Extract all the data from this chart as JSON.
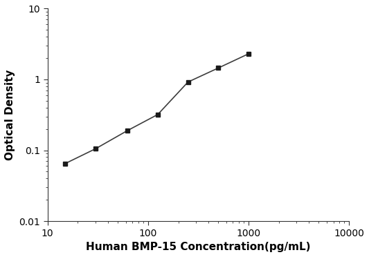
{
  "x": [
    15,
    30,
    62.5,
    125,
    250,
    500,
    1000
  ],
  "y": [
    0.065,
    0.105,
    0.19,
    0.32,
    0.92,
    1.45,
    2.3
  ],
  "line_color": "#3c3c3c",
  "marker": "s",
  "marker_color": "#1a1a1a",
  "marker_size": 5,
  "line_width": 1.2,
  "xlabel": "Human BMP-15 Concentration(pg/mL)",
  "ylabel": "Optical Density",
  "xlim": [
    10,
    10000
  ],
  "ylim": [
    0.01,
    10
  ],
  "xlabel_fontsize": 11,
  "ylabel_fontsize": 11,
  "tick_fontsize": 10,
  "background_color": "#ffffff",
  "x_ticks": [
    10,
    100,
    1000,
    10000
  ],
  "x_tick_labels": [
    "10",
    "100",
    "1000",
    "10000"
  ],
  "y_ticks": [
    0.01,
    0.1,
    1,
    10
  ],
  "y_tick_labels": [
    "0.01",
    "0.1",
    "1",
    "10"
  ]
}
